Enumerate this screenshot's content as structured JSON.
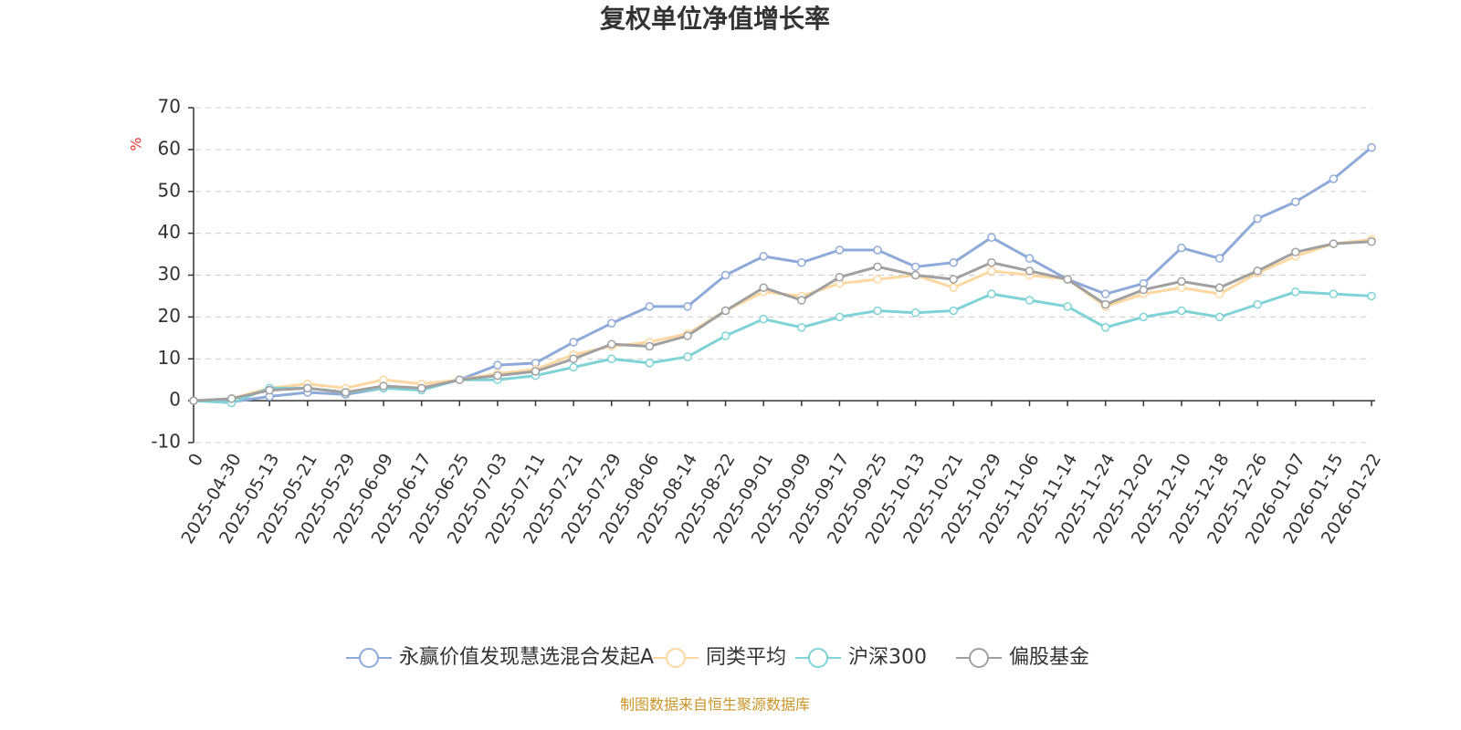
{
  "chart_data": {
    "type": "line",
    "title": "复权单位净值增长率",
    "y_unit": "%",
    "categories": [
      "0",
      "2025-04-30",
      "2025-05-13",
      "2025-05-21",
      "2025-05-29",
      "2025-06-09",
      "2025-06-17",
      "2025-06-25",
      "2025-07-03",
      "2025-07-11",
      "2025-07-21",
      "2025-07-29",
      "2025-08-06",
      "2025-08-14",
      "2025-08-22",
      "2025-09-01",
      "2025-09-09",
      "2025-09-17",
      "2025-09-25",
      "2025-10-13",
      "2025-10-21",
      "2025-10-29",
      "2025-11-06",
      "2025-11-14",
      "2025-11-24",
      "2025-12-02",
      "2025-12-10",
      "2025-12-18",
      "2025-12-26",
      "2026-01-07",
      "2026-01-15",
      "2026-01-22"
    ],
    "series": [
      {
        "name": "永赢价值发现慧选混合发起A",
        "color": "#8eaad9",
        "values": [
          0,
          -0.3,
          1,
          2,
          1.5,
          3,
          3,
          5,
          8.5,
          9,
          14,
          18.5,
          22.5,
          22.5,
          30,
          34.5,
          33,
          36,
          36,
          32,
          33,
          39,
          34,
          29,
          25.5,
          28,
          36.5,
          34,
          43.5,
          47.5,
          53,
          60.5
        ]
      },
      {
        "name": "同类平均",
        "color": "#fcd8a0",
        "values": [
          0,
          0.5,
          3,
          4,
          3,
          5,
          4,
          5,
          6.5,
          7.5,
          11,
          13,
          14,
          16,
          21.5,
          26,
          25,
          28,
          29,
          30,
          27,
          31,
          30,
          29,
          22.5,
          25.5,
          27,
          25.5,
          30.5,
          34.5,
          37.5,
          38.5
        ]
      },
      {
        "name": "沪深300",
        "color": "#7fd3d6",
        "values": [
          0,
          -0.5,
          3,
          3,
          2,
          3,
          2.5,
          5,
          5,
          6,
          8,
          10,
          9,
          10.5,
          15.5,
          19.5,
          17.5,
          20,
          21.5,
          21,
          21.5,
          25.5,
          24,
          22.5,
          17.5,
          20,
          21.5,
          20,
          23,
          26,
          25.5,
          25
        ]
      },
      {
        "name": "偏股基金",
        "color": "#a0a0a0",
        "values": [
          0,
          0.5,
          2.5,
          3,
          2,
          3.5,
          3,
          5,
          6,
          7,
          10,
          13.5,
          13,
          15.5,
          21.5,
          27,
          24,
          29.5,
          32,
          30,
          29,
          33,
          31,
          29,
          23,
          26.5,
          28.5,
          27,
          31,
          35.5,
          37.5,
          38
        ]
      }
    ],
    "ylim": [
      -10,
      70
    ],
    "yticks": [
      -10,
      0,
      10,
      20,
      30,
      40,
      50,
      60,
      70
    ],
    "grid": true,
    "legend": "bottom",
    "footer": "制图数据来自恒生聚源数据库"
  }
}
